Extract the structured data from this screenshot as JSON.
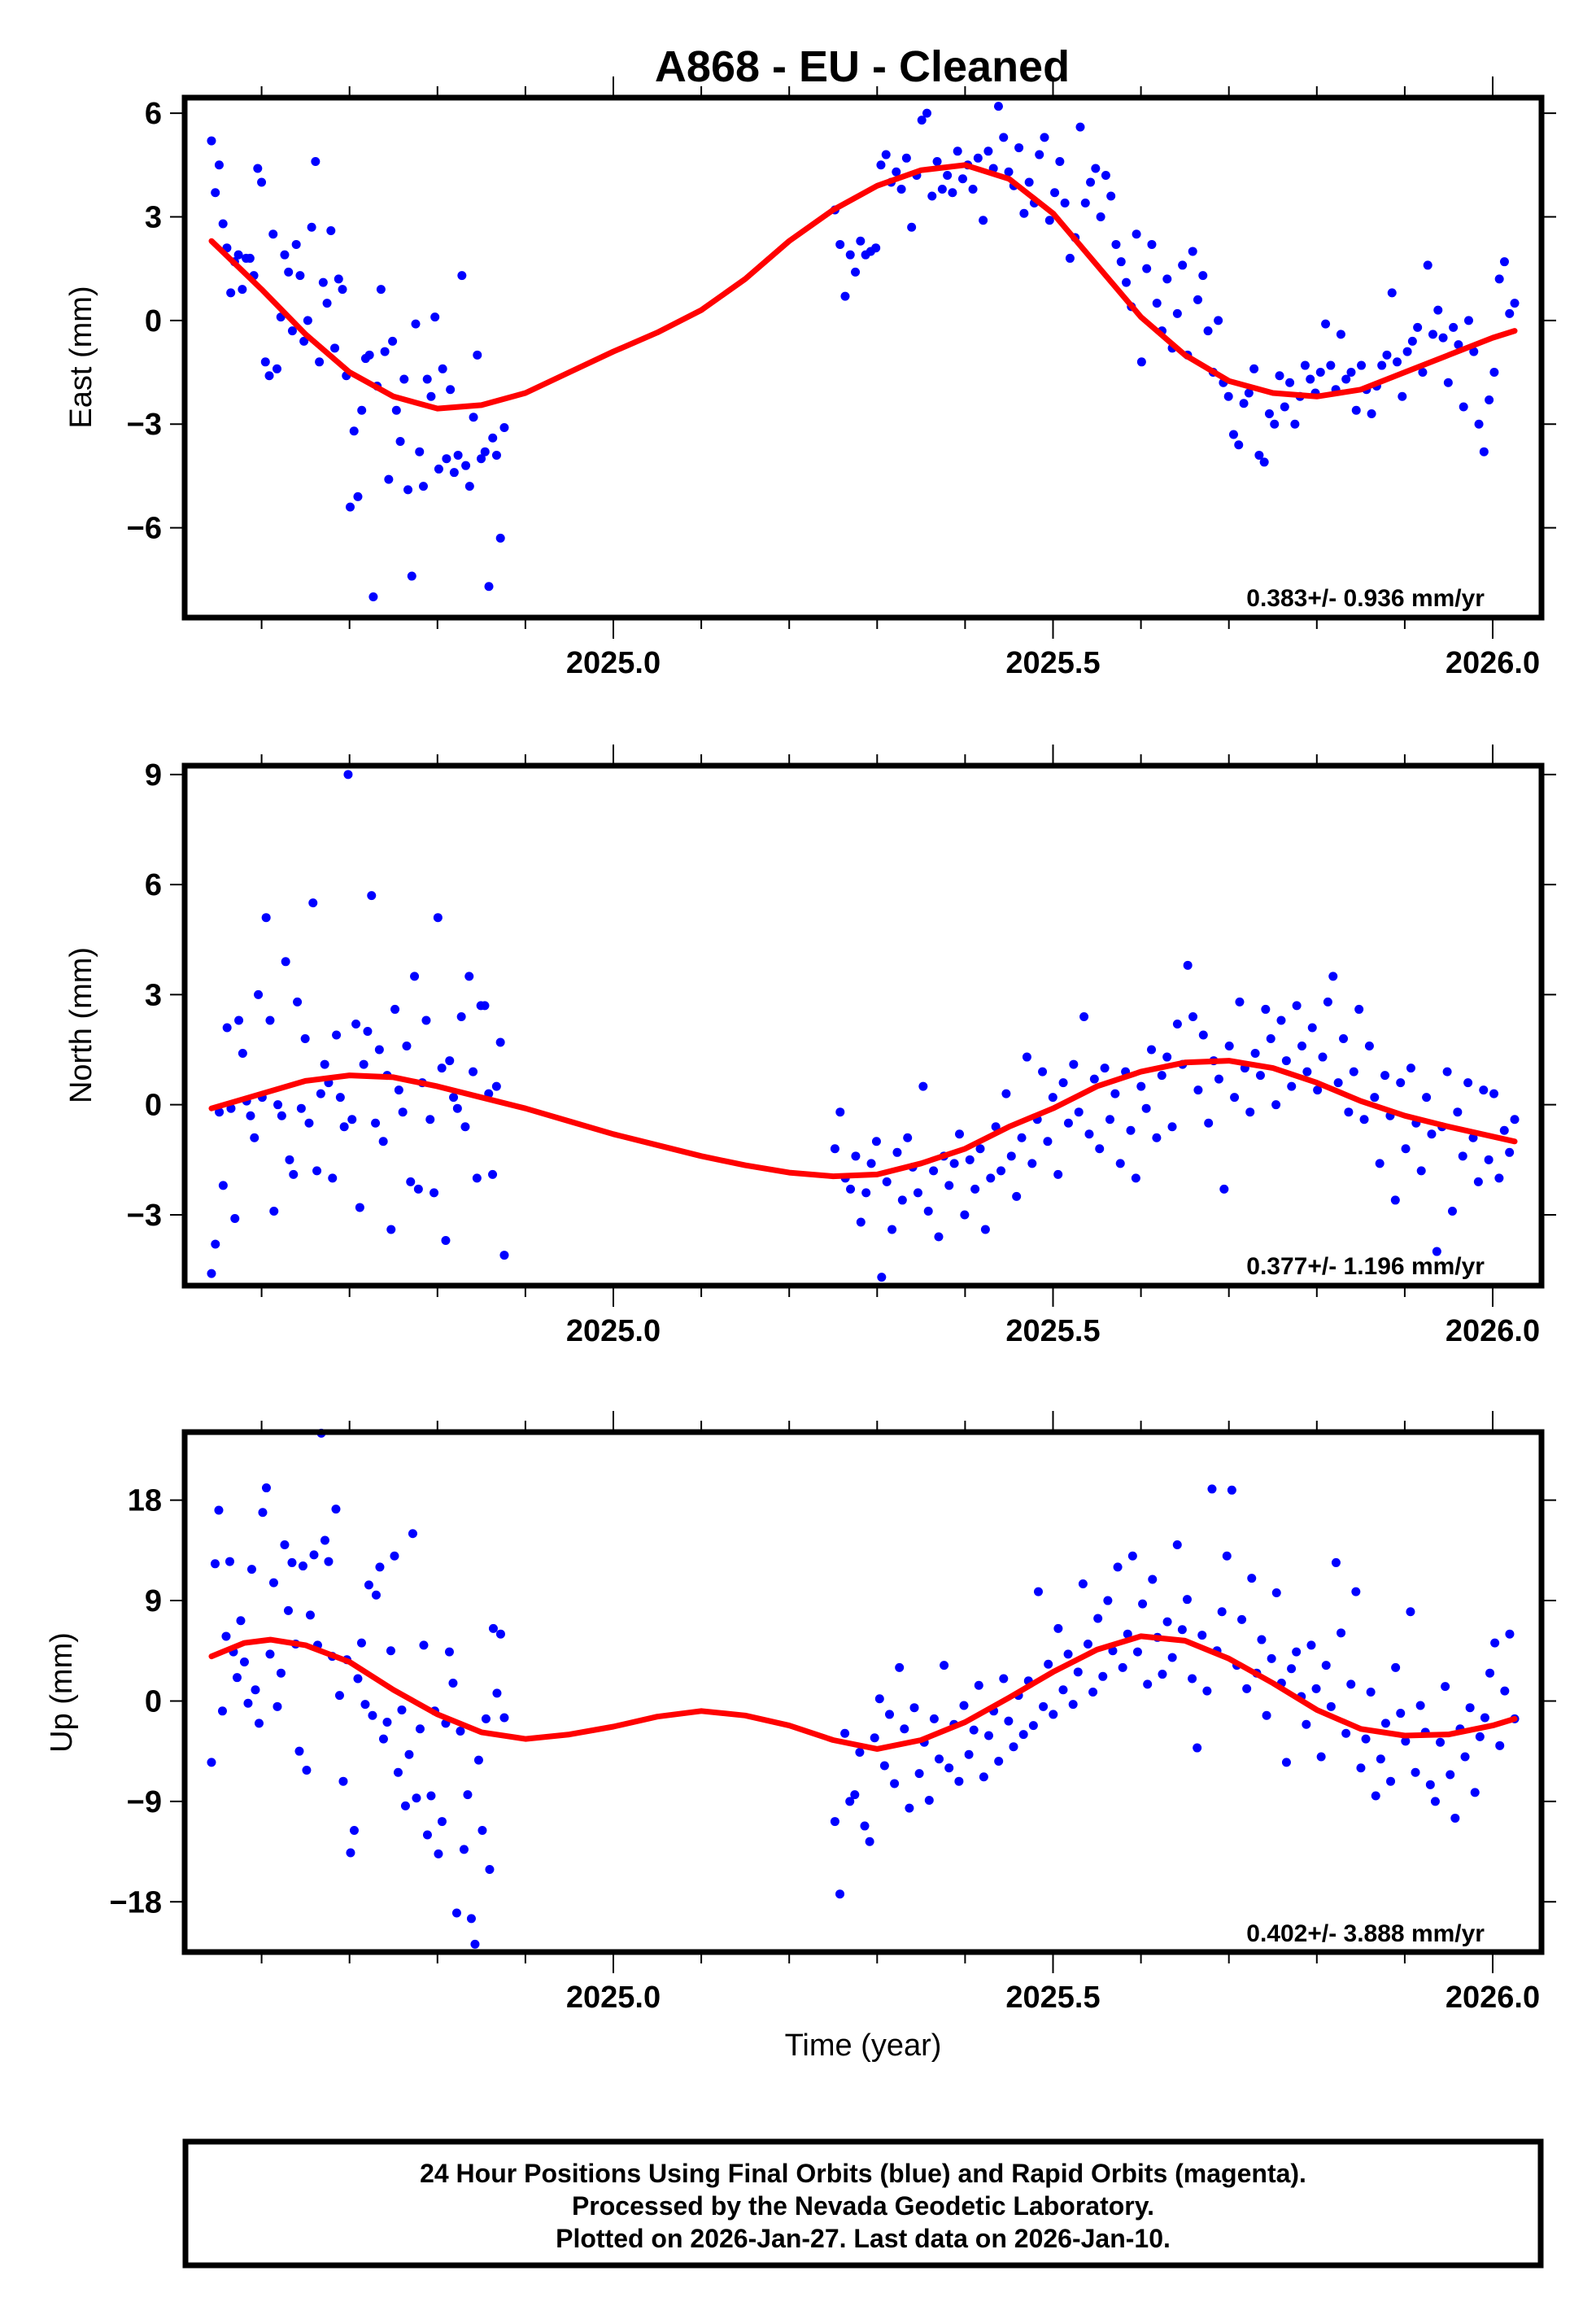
{
  "chart_data": [
    {
      "type": "scatter",
      "title": "A868  - EU - Cleaned",
      "ylabel": "East (mm)",
      "xlabel": "",
      "xlim": [
        2024.5125,
        2026.0555
      ],
      "ylim": [
        -8.6,
        6.45
      ],
      "xticks": [
        2025.0,
        2025.5,
        2026.0
      ],
      "xtick_labels": [
        "2025.0",
        "2025.5",
        "2026.0"
      ],
      "yticks": [
        6,
        3,
        0,
        -3,
        -6
      ],
      "ytick_labels": [
        "6",
        "3",
        "0",
        "−3",
        "−6"
      ],
      "rate_label": "0.383+/- 0.936 mm/yr",
      "point_color": "#0000ff",
      "model_color": "#ff0000",
      "segments": [
        {
          "t_start": 2024.543,
          "t_end": 2024.876,
          "values": [
            5.2,
            3.7,
            4.5,
            2.8,
            2.1,
            0.8,
            1.7,
            1.9,
            0.9,
            1.8,
            1.8,
            1.3,
            4.4,
            4.0,
            -1.2,
            -1.6,
            2.5,
            -1.4,
            0.1,
            1.9,
            1.4,
            -0.3,
            2.2,
            1.3,
            -0.6,
            0.0,
            2.7,
            4.6,
            -1.2,
            1.1,
            0.5,
            2.6,
            -0.8,
            1.2,
            0.9,
            -1.6,
            -5.4,
            -3.2,
            -5.1,
            -2.6,
            -1.1,
            -1.0,
            -8.0,
            -1.9,
            0.9,
            -0.9,
            -4.6,
            -0.6,
            -2.6,
            -3.5,
            -1.7,
            -4.9,
            -7.4,
            -0.1,
            -3.8,
            -4.8,
            -1.7,
            -2.2,
            0.1,
            -4.3,
            -1.4,
            -4.0,
            -2.0,
            -4.4,
            -3.9,
            1.3,
            -4.2,
            -4.8,
            -2.8,
            -1.0,
            -4.0,
            -3.8,
            -7.7,
            -3.4,
            -3.9,
            -6.3,
            -3.1
          ]
        },
        {
          "t_start": 2025.252,
          "t_end": 2026.025,
          "values": [
            3.2,
            2.2,
            0.7,
            1.9,
            1.4,
            2.3,
            1.9,
            2.0,
            2.1,
            4.5,
            4.8,
            4.0,
            4.3,
            3.8,
            4.7,
            2.7,
            4.2,
            5.8,
            6.0,
            3.6,
            4.6,
            3.8,
            4.2,
            3.7,
            4.9,
            4.1,
            4.5,
            3.8,
            4.7,
            2.9,
            4.9,
            4.4,
            6.2,
            5.3,
            4.3,
            3.9,
            5.0,
            3.1,
            4.0,
            3.4,
            4.8,
            5.3,
            2.9,
            3.7,
            4.6,
            3.4,
            1.8,
            2.4,
            5.6,
            3.4,
            4.0,
            4.4,
            3.0,
            4.2,
            3.6,
            2.2,
            1.7,
            1.1,
            0.4,
            2.5,
            -1.2,
            1.5,
            2.2,
            0.5,
            -0.3,
            1.2,
            -0.8,
            0.2,
            1.6,
            -1.0,
            2.0,
            0.6,
            1.3,
            -0.3,
            -1.5,
            0.0,
            -1.8,
            -2.2,
            -3.3,
            -3.6,
            -2.4,
            -2.1,
            -1.4,
            -3.9,
            -4.1,
            -2.7,
            -3.0,
            -1.6,
            -2.5,
            -1.8,
            -3.0,
            -2.2,
            -1.3,
            -1.7,
            -2.1,
            -1.5,
            -0.1,
            -1.3,
            -2.0,
            -0.4,
            -1.7,
            -1.5,
            -2.6,
            -1.3,
            -2.0,
            -2.7,
            -1.9,
            -1.3,
            -1.0,
            0.8,
            -1.2,
            -2.2,
            -0.9,
            -0.6,
            -0.2,
            -1.5,
            1.6,
            -0.4,
            0.3,
            -0.5,
            -1.8,
            -0.2,
            -0.7,
            -2.5,
            0.0,
            -0.9,
            -3.0,
            -3.8,
            -2.3,
            -1.5,
            1.2,
            1.7,
            0.2,
            0.5
          ]
        }
      ],
      "model": [
        [
          2024.543,
          2.3
        ],
        [
          2024.6,
          0.9
        ],
        [
          2024.65,
          -0.4
        ],
        [
          2024.7,
          -1.5
        ],
        [
          2024.75,
          -2.2
        ],
        [
          2024.8,
          -2.55
        ],
        [
          2024.85,
          -2.45
        ],
        [
          2024.9,
          -2.1
        ],
        [
          2024.95,
          -1.5
        ],
        [
          2025.0,
          -0.9
        ],
        [
          2025.05,
          -0.35
        ],
        [
          2025.1,
          0.3
        ],
        [
          2025.15,
          1.2
        ],
        [
          2025.2,
          2.3
        ],
        [
          2025.25,
          3.2
        ],
        [
          2025.3,
          3.9
        ],
        [
          2025.35,
          4.35
        ],
        [
          2025.4,
          4.5
        ],
        [
          2025.45,
          4.1
        ],
        [
          2025.5,
          3.1
        ],
        [
          2025.55,
          1.6
        ],
        [
          2025.6,
          0.1
        ],
        [
          2025.65,
          -1.0
        ],
        [
          2025.7,
          -1.75
        ],
        [
          2025.75,
          -2.1
        ],
        [
          2025.8,
          -2.2
        ],
        [
          2025.85,
          -2.0
        ],
        [
          2025.9,
          -1.5
        ],
        [
          2025.95,
          -1.0
        ],
        [
          2026.0,
          -0.5
        ],
        [
          2026.025,
          -0.3
        ]
      ]
    },
    {
      "type": "scatter",
      "ylabel": "North (mm)",
      "xlabel": "",
      "xlim": [
        2024.5125,
        2026.0555
      ],
      "ylim": [
        -4.93,
        9.24
      ],
      "xticks": [
        2025.0,
        2025.5,
        2026.0
      ],
      "xtick_labels": [
        "2025.0",
        "2025.5",
        "2026.0"
      ],
      "yticks": [
        9,
        6,
        3,
        0,
        -3
      ],
      "ytick_labels": [
        "9",
        "6",
        "3",
        "0",
        "−3"
      ],
      "rate_label": "0.377+/- 1.196 mm/yr",
      "point_color": "#0000ff",
      "model_color": "#ff0000",
      "segments": [
        {
          "t_start": 2024.543,
          "t_end": 2024.876,
          "values": [
            -4.6,
            -3.8,
            -0.2,
            -2.2,
            2.1,
            -0.1,
            -3.1,
            2.3,
            1.4,
            0.1,
            -0.3,
            -0.9,
            3.0,
            0.2,
            5.1,
            2.3,
            -2.9,
            0.0,
            -0.3,
            3.9,
            -1.5,
            -1.9,
            2.8,
            -0.1,
            1.8,
            -0.5,
            5.5,
            -1.8,
            0.3,
            1.1,
            0.6,
            -2.0,
            1.9,
            0.2,
            -0.6,
            9.0,
            -0.4,
            2.2,
            -2.8,
            1.1,
            2.0,
            5.7,
            -0.5,
            1.5,
            -1.0,
            0.8,
            -3.4,
            2.6,
            0.4,
            -0.2,
            1.6,
            -2.1,
            3.5,
            -2.3,
            0.6,
            2.3,
            -0.4,
            -2.4,
            5.1,
            1.0,
            -3.7,
            1.2,
            0.2,
            -0.1,
            2.4,
            -0.6,
            3.5,
            0.9,
            -2.0,
            2.7,
            2.7,
            0.3,
            -1.9,
            0.5,
            1.7,
            -4.1
          ]
        },
        {
          "t_start": 2025.252,
          "t_end": 2026.025,
          "values": [
            -1.2,
            -0.2,
            -2.0,
            -2.3,
            -1.4,
            -3.2,
            -2.4,
            -1.6,
            -1.0,
            -4.7,
            -2.1,
            -3.4,
            -1.3,
            -2.6,
            -0.9,
            -1.7,
            -2.4,
            0.5,
            -2.9,
            -1.8,
            -3.6,
            -1.4,
            -2.2,
            -1.6,
            -0.8,
            -3.0,
            -1.5,
            -2.3,
            -1.2,
            -3.4,
            -2.0,
            -0.6,
            -1.8,
            0.3,
            -1.4,
            -2.5,
            -0.9,
            1.3,
            -1.6,
            -0.4,
            0.9,
            -1.0,
            0.2,
            -1.9,
            0.6,
            -0.5,
            1.1,
            -0.2,
            2.4,
            -0.8,
            0.7,
            -1.2,
            1.0,
            -0.4,
            0.3,
            -1.6,
            0.9,
            -0.7,
            -2.0,
            0.5,
            -0.1,
            1.5,
            -0.9,
            0.8,
            1.3,
            -0.6,
            2.2,
            1.1,
            3.8,
            2.4,
            0.4,
            1.9,
            -0.5,
            1.2,
            0.7,
            -2.3,
            1.6,
            0.2,
            2.8,
            1.0,
            -0.2,
            1.4,
            0.8,
            2.6,
            1.8,
            0.0,
            2.3,
            1.2,
            0.5,
            2.7,
            1.6,
            0.9,
            2.1,
            0.4,
            1.3,
            2.8,
            3.5,
            0.6,
            1.8,
            -0.2,
            0.9,
            2.6,
            -0.4,
            1.6,
            0.2,
            -1.6,
            0.8,
            -0.3,
            -2.6,
            0.6,
            -1.2,
            1.0,
            -0.5,
            -1.8,
            0.2,
            -0.8,
            -4.0,
            -0.6,
            0.9,
            -2.9,
            -0.2,
            -1.4,
            0.6,
            -0.9,
            -2.1,
            0.4,
            -1.5,
            0.3,
            -2.0,
            -0.7,
            -1.3,
            -0.4
          ]
        }
      ],
      "model": [
        [
          2024.543,
          -0.1
        ],
        [
          2024.6,
          0.3
        ],
        [
          2024.65,
          0.65
        ],
        [
          2024.7,
          0.8
        ],
        [
          2024.75,
          0.75
        ],
        [
          2024.8,
          0.5
        ],
        [
          2024.85,
          0.2
        ],
        [
          2024.9,
          -0.1
        ],
        [
          2024.95,
          -0.45
        ],
        [
          2025.0,
          -0.8
        ],
        [
          2025.05,
          -1.1
        ],
        [
          2025.1,
          -1.4
        ],
        [
          2025.15,
          -1.65
        ],
        [
          2025.2,
          -1.85
        ],
        [
          2025.25,
          -1.95
        ],
        [
          2025.3,
          -1.9
        ],
        [
          2025.35,
          -1.6
        ],
        [
          2025.4,
          -1.2
        ],
        [
          2025.45,
          -0.6
        ],
        [
          2025.5,
          -0.1
        ],
        [
          2025.55,
          0.5
        ],
        [
          2025.6,
          0.9
        ],
        [
          2025.65,
          1.15
        ],
        [
          2025.7,
          1.2
        ],
        [
          2025.75,
          1.0
        ],
        [
          2025.8,
          0.6
        ],
        [
          2025.85,
          0.1
        ],
        [
          2025.9,
          -0.3
        ],
        [
          2025.95,
          -0.6
        ],
        [
          2026.025,
          -1.0
        ]
      ]
    },
    {
      "type": "scatter",
      "ylabel": "Up (mm)",
      "xlabel": "Time (year)",
      "xlim": [
        2024.5125,
        2026.0555
      ],
      "ylim": [
        -22.5,
        24.1
      ],
      "xticks": [
        2025.0,
        2025.5,
        2026.0
      ],
      "xtick_labels": [
        "2025.0",
        "2025.5",
        "2026.0"
      ],
      "yticks": [
        18,
        9,
        0,
        -9,
        -18
      ],
      "ytick_labels": [
        "18",
        "9",
        "0",
        "−9",
        "−18"
      ],
      "rate_label": "0.402+/- 3.888 mm/yr",
      "point_color": "#0000ff",
      "model_color": "#ff0000",
      "segments": [
        {
          "t_start": 2024.543,
          "t_end": 2024.876,
          "values": [
            -5.5,
            12.3,
            17.1,
            -0.9,
            5.8,
            12.5,
            4.4,
            2.1,
            7.2,
            3.5,
            -0.2,
            11.8,
            1.0,
            -2.0,
            16.9,
            19.1,
            4.2,
            10.6,
            -0.5,
            2.5,
            14.0,
            8.1,
            12.4,
            5.1,
            -4.5,
            12.1,
            -6.2,
            7.7,
            13.1,
            5.0,
            24.0,
            14.4,
            12.5,
            4.0,
            17.2,
            0.5,
            -7.2,
            3.7,
            -13.6,
            -11.6,
            2.0,
            5.2,
            -0.3,
            10.4,
            -1.3,
            9.5,
            12.0,
            -3.4,
            -1.9,
            4.5,
            13.0,
            -6.4,
            -0.8,
            -9.4,
            -4.8,
            15.0,
            -8.7,
            -2.5,
            5.0,
            -12.0,
            -8.5,
            -0.9,
            -13.7,
            -10.8,
            -2.0,
            4.4,
            1.6,
            -19.0,
            -2.7,
            -13.3,
            -8.4,
            -19.5,
            -21.8,
            -5.3,
            -11.6,
            -1.6,
            -15.1,
            6.5,
            0.7,
            6.0,
            -1.5
          ]
        },
        {
          "t_start": 2025.252,
          "t_end": 2026.025,
          "values": [
            -10.8,
            -17.3,
            -2.9,
            -9.0,
            -8.4,
            -4.6,
            -11.2,
            -12.6,
            -3.3,
            0.2,
            -5.8,
            -1.2,
            -7.4,
            3.0,
            -2.5,
            -9.6,
            -0.6,
            -6.5,
            -3.7,
            -8.9,
            -1.6,
            -5.2,
            3.2,
            -6.0,
            -2.1,
            -7.2,
            -0.4,
            -4.8,
            -2.6,
            1.4,
            -6.8,
            -3.1,
            -0.9,
            -5.4,
            2.0,
            -1.8,
            -4.1,
            0.5,
            -3.0,
            1.8,
            -2.2,
            9.8,
            -0.5,
            3.3,
            -1.2,
            6.5,
            1.0,
            4.2,
            -0.3,
            2.6,
            10.5,
            5.1,
            0.8,
            7.4,
            2.2,
            9.0,
            4.5,
            12.0,
            3.0,
            6.0,
            13.0,
            4.4,
            8.7,
            1.5,
            10.9,
            5.7,
            2.4,
            7.1,
            3.9,
            14.0,
            6.4,
            9.1,
            2.0,
            -4.2,
            5.9,
            0.9,
            19.0,
            4.5,
            8.0,
            13.0,
            18.9,
            3.2,
            7.3,
            1.1,
            11.0,
            2.5,
            5.5,
            -1.3,
            3.8,
            9.7,
            1.6,
            -5.5,
            2.9,
            4.4,
            0.4,
            -2.1,
            5.0,
            1.1,
            -5.0,
            3.2,
            -0.5,
            12.4,
            6.1,
            -2.9,
            1.5,
            9.8,
            -6.0,
            -3.4,
            0.8,
            -8.5,
            -5.2,
            -2.0,
            -7.2,
            3.0,
            -1.1,
            -3.6,
            8.0,
            -6.4,
            -0.4,
            -2.8,
            -7.5,
            -9.0,
            -3.7,
            1.3,
            -6.6,
            -10.5,
            -2.5,
            -5.0,
            -0.6,
            -8.2,
            -3.2,
            -1.5,
            2.5,
            5.2,
            -4.0,
            0.9,
            6.0,
            -1.6
          ]
        }
      ],
      "model": [
        [
          2024.543,
          4.0
        ],
        [
          2024.58,
          5.2
        ],
        [
          2024.61,
          5.5
        ],
        [
          2024.65,
          5.0
        ],
        [
          2024.7,
          3.5
        ],
        [
          2024.75,
          1.0
        ],
        [
          2024.8,
          -1.2
        ],
        [
          2024.85,
          -2.8
        ],
        [
          2024.9,
          -3.4
        ],
        [
          2024.95,
          -3.0
        ],
        [
          2025.0,
          -2.3
        ],
        [
          2025.05,
          -1.4
        ],
        [
          2025.1,
          -0.9
        ],
        [
          2025.15,
          -1.3
        ],
        [
          2025.2,
          -2.2
        ],
        [
          2025.25,
          -3.5
        ],
        [
          2025.3,
          -4.3
        ],
        [
          2025.35,
          -3.5
        ],
        [
          2025.4,
          -1.9
        ],
        [
          2025.45,
          0.3
        ],
        [
          2025.5,
          2.6
        ],
        [
          2025.55,
          4.6
        ],
        [
          2025.6,
          5.8
        ],
        [
          2025.65,
          5.4
        ],
        [
          2025.7,
          3.8
        ],
        [
          2025.75,
          1.6
        ],
        [
          2025.8,
          -0.8
        ],
        [
          2025.85,
          -2.5
        ],
        [
          2025.9,
          -3.1
        ],
        [
          2025.95,
          -3.0
        ],
        [
          2026.0,
          -2.2
        ],
        [
          2026.025,
          -1.6
        ]
      ]
    }
  ],
  "footer": {
    "line1": "24 Hour Positions Using Final Orbits (blue) and Rapid Orbits (magenta).",
    "line2": "Processed by the Nevada Geodetic Laboratory.",
    "line3": "Plotted on 2026-Jan-27. Last data on 2026-Jan-10."
  }
}
